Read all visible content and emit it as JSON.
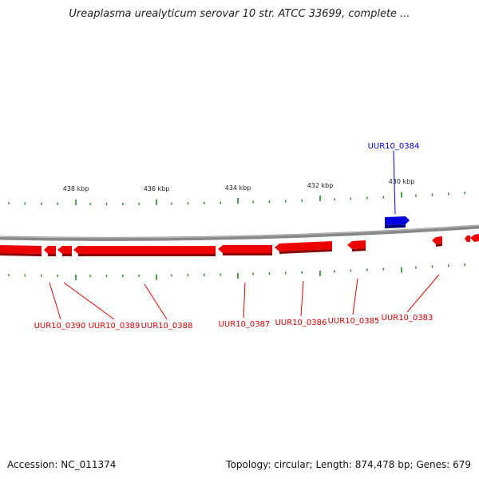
{
  "title": "Ureaplasma urealyticum serovar 10 str. ATCC 33699, complete ...",
  "footer": {
    "accession": "Accession: NC_011374",
    "summary": "Topology: circular; Length: 874,478 bp; Genes: 679"
  },
  "colors": {
    "forward_gene": "#0000dd",
    "reverse_gene": "#ee0000",
    "tick": "#1a8a1a",
    "backbone": "#888888"
  },
  "ticks": {
    "labels": [
      "438 kbp",
      "436 kbp",
      "434 kbp",
      "432 kbp",
      "430 kbp"
    ]
  },
  "genes": [
    {
      "name": "UUR10_0384",
      "strand": "forward",
      "labeled": true
    },
    {
      "name": "UUR10_0383",
      "strand": "reverse",
      "labeled": true
    },
    {
      "name": "UUR10_0385",
      "strand": "reverse",
      "labeled": true
    },
    {
      "name": "UUR10_0386",
      "strand": "reverse",
      "labeled": true
    },
    {
      "name": "UUR10_0387",
      "strand": "reverse",
      "labeled": true
    },
    {
      "name": "UUR10_0388",
      "strand": "reverse",
      "labeled": true
    },
    {
      "name": "UUR10_0389",
      "strand": "reverse",
      "labeled": true
    },
    {
      "name": "UUR10_0390",
      "strand": "reverse",
      "labeled": true
    }
  ]
}
